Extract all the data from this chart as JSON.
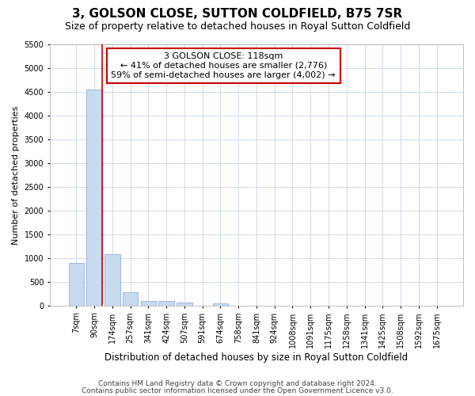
{
  "title": "3, GOLSON CLOSE, SUTTON COLDFIELD, B75 7SR",
  "subtitle": "Size of property relative to detached houses in Royal Sutton Coldfield",
  "xlabel": "Distribution of detached houses by size in Royal Sutton Coldfield",
  "ylabel": "Number of detached properties",
  "footnote1": "Contains HM Land Registry data © Crown copyright and database right 2024.",
  "footnote2": "Contains public sector information licensed under the Open Government Licence v3.0.",
  "categories": [
    "7sqm",
    "90sqm",
    "174sqm",
    "257sqm",
    "341sqm",
    "424sqm",
    "507sqm",
    "591sqm",
    "674sqm",
    "758sqm",
    "841sqm",
    "924sqm",
    "1008sqm",
    "1091sqm",
    "1175sqm",
    "1258sqm",
    "1341sqm",
    "1425sqm",
    "1508sqm",
    "1592sqm",
    "1675sqm"
  ],
  "values": [
    900,
    4550,
    1075,
    285,
    90,
    90,
    60,
    0,
    50,
    0,
    0,
    0,
    0,
    0,
    0,
    0,
    0,
    0,
    0,
    0,
    0
  ],
  "bar_color": "#c8daf0",
  "bar_edge_color": "#90afd8",
  "grid_color": "#c8d4e8",
  "annotation_text": "3 GOLSON CLOSE: 118sqm\n← 41% of detached houses are smaller (2,776)\n59% of semi-detached houses are larger (4,002) →",
  "annotation_box_color": "#ffffff",
  "annotation_border_color": "#cc0000",
  "vline_color": "#cc0000",
  "vline_x": 1.45,
  "ylim": [
    0,
    5500
  ],
  "yticks": [
    0,
    500,
    1000,
    1500,
    2000,
    2500,
    3000,
    3500,
    4000,
    4500,
    5000,
    5500
  ],
  "title_fontsize": 11,
  "subtitle_fontsize": 9,
  "xlabel_fontsize": 8.5,
  "ylabel_fontsize": 8,
  "tick_fontsize": 7,
  "annot_fontsize": 8,
  "footnote_fontsize": 6.5,
  "bg_color": "#ffffff"
}
